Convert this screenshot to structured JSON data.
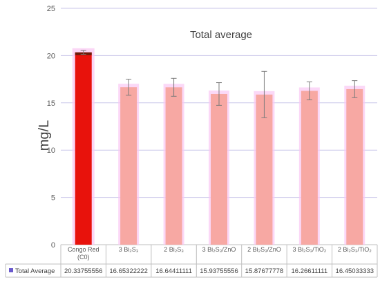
{
  "chart_data": {
    "type": "bar",
    "title": "Total average",
    "ylabel": "mg/L",
    "xlabel": "",
    "ylim": [
      0,
      25
    ],
    "yticks": [
      0,
      5,
      10,
      15,
      20,
      25
    ],
    "grid": true,
    "legend": "bottom-table",
    "categories": [
      {
        "main": "Congo Red",
        "sub": "(C0)"
      },
      {
        "main": "3 Bi₂S₃",
        "sub": ""
      },
      {
        "main": "2 Bi₂S₃",
        "sub": ""
      },
      {
        "main": "3 Bi₂S₃/ZnO",
        "sub": ""
      },
      {
        "main": "2 Bi₂S₃/ZnO",
        "sub": ""
      },
      {
        "main": "3 Bi₂S₃/TiO₂",
        "sub": ""
      },
      {
        "main": "2 Bi₂S₃/TiO₂",
        "sub": ""
      }
    ],
    "series": [
      {
        "name": "Total Average",
        "values": [
          20.33755556,
          16.65322222,
          16.64411111,
          15.93755556,
          15.87677778,
          16.26611111,
          16.45033333
        ],
        "value_labels": [
          "20.33755556",
          "16.65322222",
          "16.64411111",
          "15.93755556",
          "15.87677778",
          "16.26611111",
          "16.45033333"
        ],
        "error": [
          0.2,
          0.85,
          0.95,
          1.2,
          2.45,
          0.95,
          0.9
        ]
      }
    ],
    "colors": {
      "first_bar": "#e8120c",
      "first_bar_top": "#6b1d0a",
      "bars": "#f7a8a3",
      "bar_glow": "#f9c8f3",
      "grid": "#c9c5ea",
      "error": "#7a7a7a",
      "legend_marker": "#6a5acd"
    }
  }
}
